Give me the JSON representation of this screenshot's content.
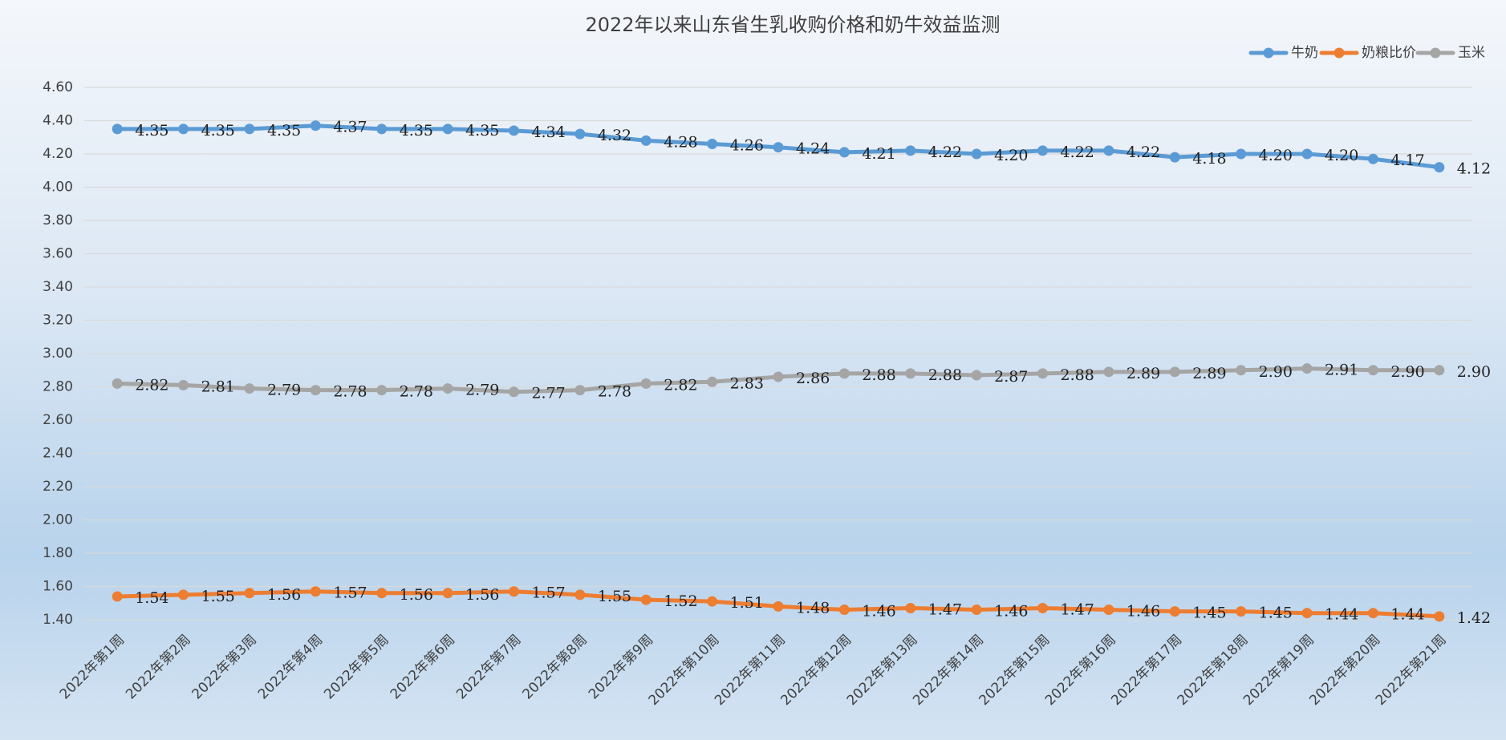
{
  "chart_data": {
    "type": "line",
    "title": "2022年以来山东省生乳收购价格和奶牛效益监测",
    "categories": [
      "2022年第1周",
      "2022年第2周",
      "2022年第3周",
      "2022年第4周",
      "2022年第5周",
      "2022年第6周",
      "2022年第7周",
      "2022年第8周",
      "2022年第9周",
      "2022年第10周",
      "2022年第11周",
      "2022年第12周",
      "2022年第13周",
      "2022年第14周",
      "2022年第15周",
      "2022年第16周",
      "2022年第17周",
      "2022年第18周",
      "2022年第19周",
      "2022年第20周",
      "2022年第21周"
    ],
    "series": [
      {
        "name": "牛奶",
        "color": "#5b9bd5",
        "values": [
          4.35,
          4.35,
          4.35,
          4.37,
          4.35,
          4.35,
          4.34,
          4.32,
          4.28,
          4.26,
          4.24,
          4.21,
          4.22,
          4.2,
          4.22,
          4.22,
          4.18,
          4.2,
          4.2,
          4.17,
          4.12
        ],
        "value_labels": [
          "4.35",
          "4.35",
          "4.35",
          "4.37",
          "4.35",
          "4.35",
          "4.34",
          "4.32",
          "4.28",
          "4.26",
          "4.24",
          "4.21",
          "4.22",
          "4.20",
          "4.22",
          "4.22",
          "4.18",
          "4.20",
          "4.20",
          "4.17",
          "4.12"
        ]
      },
      {
        "name": "奶粮比价",
        "color": "#ed7d31",
        "values": [
          1.54,
          1.55,
          1.56,
          1.57,
          1.56,
          1.56,
          1.57,
          1.55,
          1.52,
          1.51,
          1.48,
          1.46,
          1.47,
          1.46,
          1.47,
          1.46,
          1.45,
          1.45,
          1.44,
          1.44,
          1.42
        ],
        "value_labels": [
          "1.54",
          "1.55",
          "1.56",
          "1.57",
          "1.56",
          "1.56",
          "1.57",
          "1.55",
          "1.52",
          "1.51",
          "1.48",
          "1.46",
          "1.47",
          "1.46",
          "1.47",
          "1.46",
          "1.45",
          "1.45",
          "1.44",
          "1.44",
          "1.42"
        ]
      },
      {
        "name": "玉米",
        "color": "#a5a5a5",
        "values": [
          2.82,
          2.81,
          2.79,
          2.78,
          2.78,
          2.79,
          2.77,
          2.78,
          2.82,
          2.83,
          2.86,
          2.88,
          2.88,
          2.87,
          2.88,
          2.89,
          2.89,
          2.9,
          2.91,
          2.9,
          2.9
        ],
        "value_labels": [
          "2.82",
          "2.81",
          "2.79",
          "2.78",
          "2.78",
          "2.79",
          "2.77",
          "2.78",
          "2.82",
          "2.83",
          "2.86",
          "2.88",
          "2.88",
          "2.87",
          "2.88",
          "2.89",
          "2.89",
          "2.90",
          "2.91",
          "2.90",
          "2.90"
        ]
      }
    ],
    "ylim": [
      1.4,
      4.6
    ],
    "yticks": [
      {
        "value": 1.4,
        "label": "1.40"
      },
      {
        "value": 1.6,
        "label": "1.60"
      },
      {
        "value": 1.8,
        "label": "1.80"
      },
      {
        "value": 2.0,
        "label": "2.00"
      },
      {
        "value": 2.2,
        "label": "2.20"
      },
      {
        "value": 2.4,
        "label": "2.40"
      },
      {
        "value": 2.6,
        "label": "2.60"
      },
      {
        "value": 2.8,
        "label": "2.80"
      },
      {
        "value": 3.0,
        "label": "3.00"
      },
      {
        "value": 3.2,
        "label": "3.20"
      },
      {
        "value": 3.4,
        "label": "3.40"
      },
      {
        "value": 3.6,
        "label": "3.60"
      },
      {
        "value": 3.8,
        "label": "3.80"
      },
      {
        "value": 4.0,
        "label": "4.00"
      },
      {
        "value": 4.2,
        "label": "4.20"
      },
      {
        "value": 4.4,
        "label": "4.40"
      },
      {
        "value": 4.6,
        "label": "4.60"
      }
    ],
    "grid": true,
    "legend": "top-right"
  }
}
